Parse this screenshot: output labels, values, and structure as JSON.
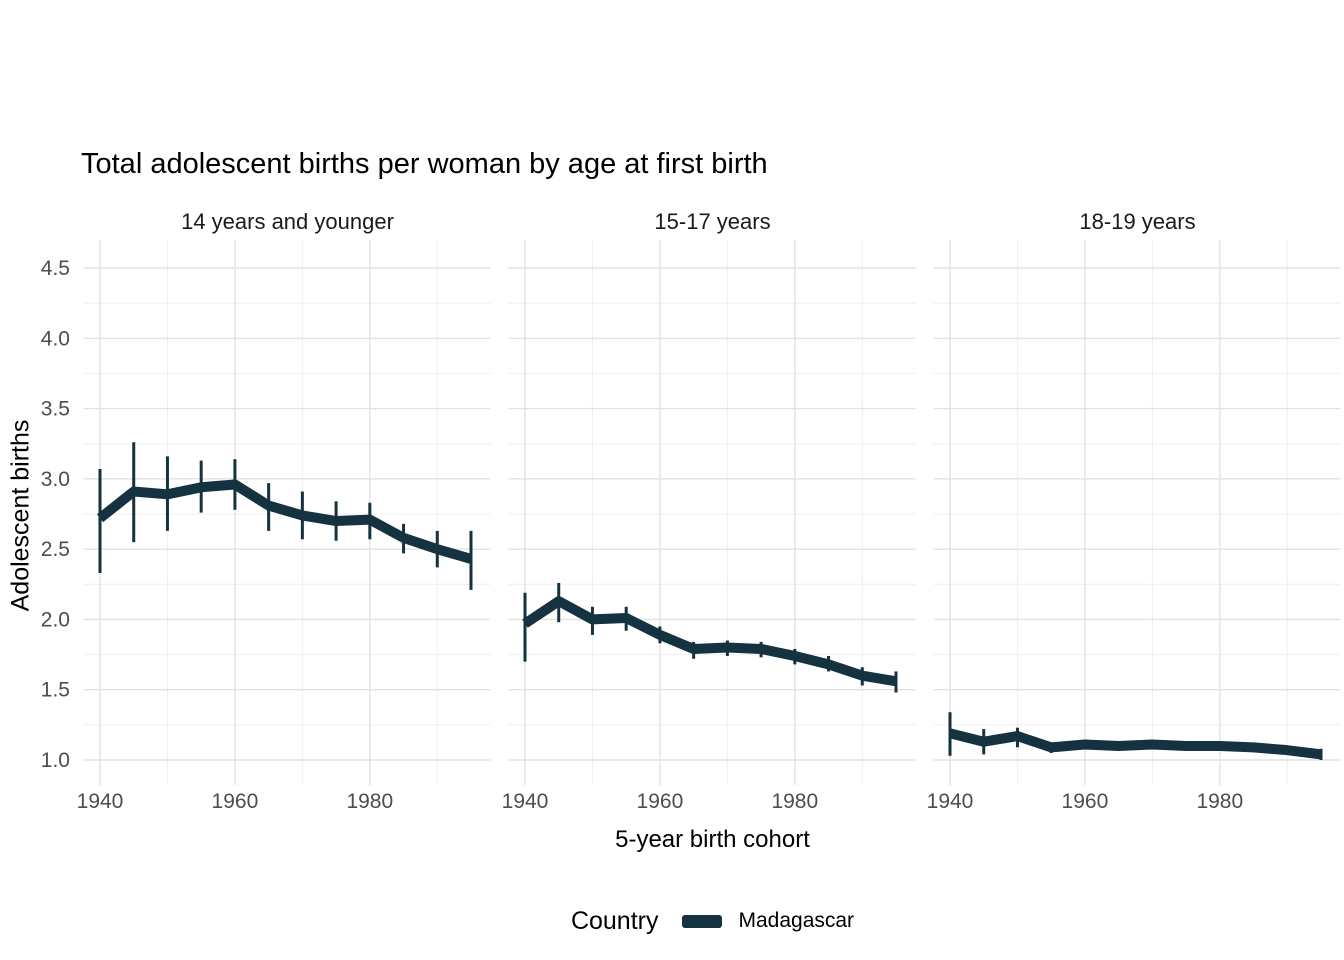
{
  "chart": {
    "title": "Total adolescent births per woman by age at first birth",
    "xlabel": "5-year birth cohort",
    "ylabel": "Adolescent births"
  },
  "legend": {
    "title": "Country",
    "items": [
      {
        "label": "Madagascar",
        "color": "#14323f"
      }
    ]
  },
  "colors": {
    "accent": "#14323f",
    "grid_major": "#e2e2e2",
    "grid_minor": "#efefef",
    "tick_text": "#4d4d4d",
    "background": "#ffffff"
  },
  "axes": {
    "y_ticks": [
      "1.0",
      "1.5",
      "2.0",
      "2.5",
      "3.0",
      "3.5",
      "4.0",
      "4.5"
    ],
    "x_ticks": [
      "1940",
      "1960",
      "1980"
    ]
  },
  "chart_data": {
    "type": "line",
    "title": "Total adolescent births per woman by age at first birth",
    "xlabel": "5-year birth cohort",
    "ylabel": "Adolescent births",
    "series_name": "Madagascar",
    "legend_position": "bottom",
    "grid": "major-and-minor",
    "x": [
      1940,
      1945,
      1950,
      1955,
      1960,
      1965,
      1970,
      1975,
      1980,
      1985,
      1990,
      1995
    ],
    "x_axis_ticks": [
      1940,
      1960,
      1980
    ],
    "y_axis_ticks": [
      1.0,
      1.5,
      2.0,
      2.5,
      3.0,
      3.5,
      4.0,
      4.5
    ],
    "ylim_shown": [
      0.82,
      4.7
    ],
    "facets": [
      {
        "label": "14 years and younger",
        "y": [
          2.72,
          2.91,
          2.89,
          2.94,
          2.96,
          2.81,
          2.74,
          2.7,
          2.71,
          2.58,
          2.5,
          2.43
        ],
        "ymin": [
          2.33,
          2.55,
          2.63,
          2.76,
          2.78,
          2.63,
          2.57,
          2.56,
          2.57,
          2.47,
          2.37,
          2.21
        ],
        "ymax": [
          3.07,
          3.26,
          3.16,
          3.13,
          3.14,
          2.97,
          2.91,
          2.84,
          2.83,
          2.68,
          2.63,
          2.63
        ]
      },
      {
        "label": "15-17 years",
        "y": [
          1.97,
          2.13,
          2.0,
          2.01,
          1.89,
          1.79,
          1.8,
          1.79,
          1.74,
          1.68,
          1.6,
          1.56
        ],
        "ymin": [
          1.7,
          1.98,
          1.89,
          1.92,
          1.83,
          1.72,
          1.74,
          1.73,
          1.68,
          1.63,
          1.53,
          1.48
        ],
        "ymax": [
          2.19,
          2.26,
          2.09,
          2.09,
          1.95,
          1.84,
          1.85,
          1.84,
          1.79,
          1.74,
          1.66,
          1.63
        ]
      },
      {
        "label": "18-19 years",
        "y": [
          1.19,
          1.13,
          1.17,
          1.09,
          1.11,
          1.1,
          1.11,
          1.1,
          1.1,
          1.09,
          1.07,
          1.04
        ],
        "ymin": [
          1.03,
          1.04,
          1.09,
          1.05,
          1.08,
          1.07,
          1.08,
          1.07,
          1.07,
          1.06,
          1.04,
          1.0
        ],
        "ymax": [
          1.34,
          1.22,
          1.23,
          1.12,
          1.14,
          1.13,
          1.14,
          1.13,
          1.13,
          1.12,
          1.1,
          1.08
        ]
      }
    ]
  }
}
